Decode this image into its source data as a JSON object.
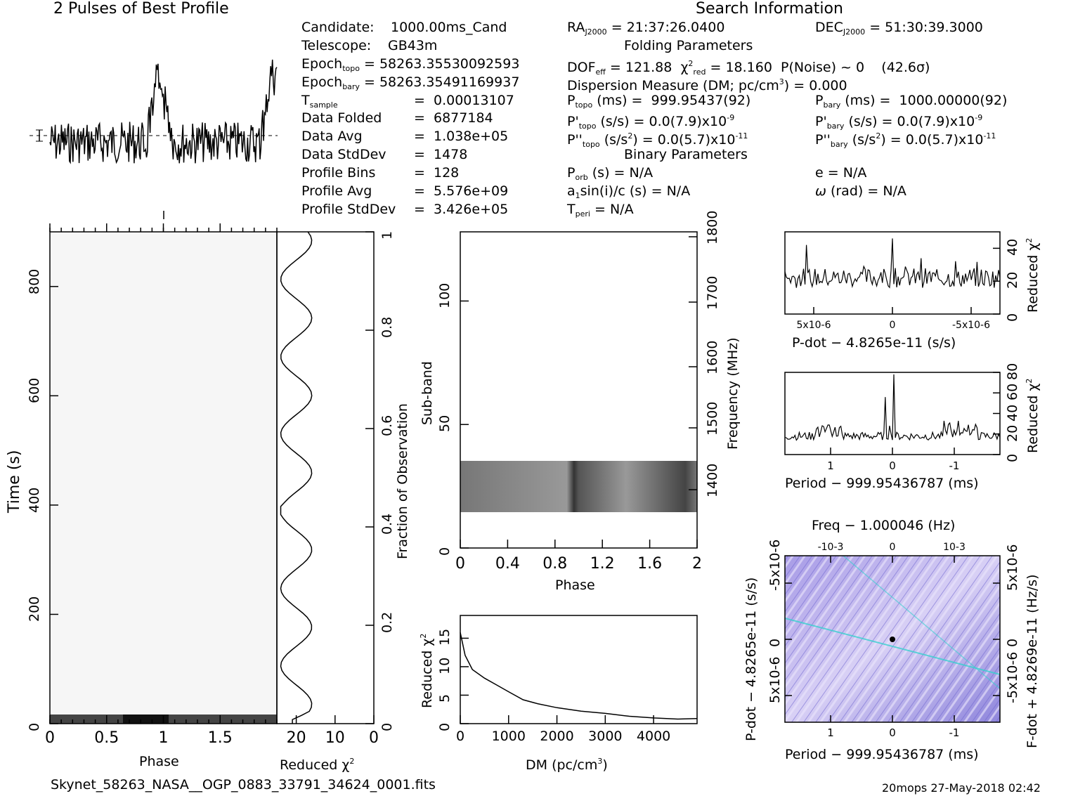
{
  "title_profile": "2 Pulses of Best Profile",
  "title_search": "Search Information",
  "info": {
    "candidate_label": "Candidate:",
    "candidate_value": "1000.00ms_Cand",
    "telescope_label": "Telescope:",
    "telescope_value": "GB43m",
    "epoch_topo": "58263.35530092593",
    "epoch_bary": "58263.35491169937",
    "t_sample": "0.00013107",
    "data_folded_label": "Data Folded",
    "data_folded": "6877184",
    "data_avg_label": "Data Avg",
    "data_avg": "1.038e+05",
    "data_stddev_label": "Data StdDev",
    "data_stddev": "1478",
    "profile_bins_label": "Profile Bins",
    "profile_bins": "128",
    "profile_avg_label": "Profile Avg",
    "profile_avg": "5.576e+09",
    "profile_stddev_label": "Profile StdDev",
    "profile_stddev": "3.426e+05",
    "ra": "21:37:26.0400",
    "dec": "51:30:39.3000",
    "folding_title": "Folding Parameters",
    "dof_eff": "121.88",
    "chi2_red": "18.160",
    "p_noise": "P(Noise) ~ 0",
    "sigma": "(42.6σ)",
    "dm_line": "Dispersion Measure (DM; pc/cm",
    "dm_value": ") = 0.000",
    "p_topo": "999.95437(92)",
    "p_bary": "1000.00000(92)",
    "pd_topo": "0.0(7.9)x10",
    "pd_topo_exp": "-9",
    "pd_bary": "0.0(7.9)x10",
    "pd_bary_exp": "-9",
    "pdd_topo": "0.0(5.7)x10",
    "pdd_topo_exp": "-11",
    "pdd_bary": "0.0(5.7)x10",
    "pdd_bary_exp": "-11",
    "binary_title": "Binary Parameters",
    "p_orb": "N/A",
    "a1": "N/A",
    "t_peri": "N/A",
    "ecc": "N/A",
    "omega": "N/A"
  },
  "labels": {
    "time_axis": "Time (s)",
    "phase": "Phase",
    "reduced_chi2": "Reduced χ",
    "fraction_obs": "Fraction of Observation",
    "subband": "Sub-band",
    "frequency": "Frequency (MHz)",
    "dm_axis": "DM (pc/cm",
    "pdot_axis": "P-dot − 4.8265e-11 (s/s)",
    "period_axis": "Period − 999.95436787 (ms)",
    "freq_axis": "Freq − 1.000046 (Hz)",
    "fdot_axis": "F-dot + 4.8269e-11 (Hz/s)",
    "pdot_left_axis": "P-dot − 4.8265e-11 (s/s)",
    "filename": "Skynet_58263_NASA__OGP_0883_33791_34624_0001.fits",
    "stamp": "20mops 27-May-2018 02:42"
  },
  "chart_data": [
    {
      "type": "line",
      "title": "2 Pulses of Best Profile",
      "xlabel": "",
      "ylabel": "",
      "xlim": [
        0,
        2
      ],
      "note_peaks": [
        0.97,
        1.97
      ]
    },
    {
      "type": "heatmap",
      "xlabel": "Phase",
      "ylabel": "Time (s)",
      "xlim": [
        0,
        2
      ],
      "ylim": [
        0,
        900
      ],
      "x_ticks": [
        "0",
        "0.5",
        "1",
        "1.5"
      ],
      "y_ticks": [
        "0",
        "200",
        "400",
        "600",
        "800"
      ]
    },
    {
      "type": "line",
      "xlabel": "Reduced χ2",
      "ylabel": "Fraction of Observation",
      "xlim": [
        25,
        0
      ],
      "ylim": [
        0,
        1
      ],
      "x_ticks": [
        "20",
        "10",
        "0"
      ],
      "y_ticks": [
        "0",
        "0.2",
        "0.4",
        "0.6",
        "0.8",
        "1"
      ]
    },
    {
      "type": "heatmap",
      "xlabel": "Phase",
      "ylabel": "Sub-band",
      "y2label": "Frequency (MHz)",
      "xlim": [
        0,
        2
      ],
      "ylim": [
        0,
        128
      ],
      "x_ticks": [
        "0",
        "0.4",
        "0.8",
        "1.2",
        "1.6",
        "2"
      ],
      "y_ticks": [
        "0",
        "50",
        "100"
      ],
      "y2_ticks": [
        "1400",
        "1500",
        "1600",
        "1700",
        "1800"
      ],
      "signal_subbands": [
        14,
        35
      ]
    },
    {
      "type": "line",
      "xlabel": "DM (pc/cm3)",
      "ylabel": "Reduced χ2",
      "xlim": [
        0,
        4900
      ],
      "ylim": [
        0,
        19
      ],
      "x_ticks": [
        "0",
        "1000",
        "2000",
        "3000",
        "4000"
      ],
      "y_ticks": [
        "0",
        "5",
        "10",
        "15"
      ],
      "x": [
        0,
        100,
        250,
        500,
        750,
        1000,
        1300,
        1600,
        2000,
        2500,
        3000,
        3500,
        4000,
        4500,
        4900
      ],
      "y": [
        16,
        12,
        9.5,
        8,
        6.8,
        5.6,
        4.2,
        3.5,
        2.8,
        2.2,
        1.8,
        1.3,
        1.0,
        0.8,
        0.9
      ]
    },
    {
      "type": "line",
      "xlabel": "P-dot − 4.8265e-11 (s/s)",
      "ylabel": "Reduced χ2",
      "x_ticks": [
        "5x10-6",
        "0",
        "-5x10-6"
      ],
      "y_ticks": [
        "0",
        "20",
        "40"
      ],
      "ylim": [
        0,
        50
      ]
    },
    {
      "type": "line",
      "xlabel": "Period − 999.95436787 (ms)",
      "ylabel": "Reduced χ2",
      "x_ticks": [
        "1",
        "0",
        "-1"
      ],
      "y_ticks": [
        "0",
        "20",
        "40",
        "60",
        "80"
      ],
      "ylim": [
        0,
        80
      ]
    },
    {
      "type": "heatmap",
      "xlabel": "Period − 999.95436787 (ms)",
      "ylabel": "P-dot − 4.8265e-11 (s/s)",
      "x_ticks": [
        "1",
        "0",
        "-1"
      ],
      "top_ticks": [
        "-10-3",
        "0",
        "10-3"
      ],
      "y_ticks": [
        "-5x10-6",
        "0",
        "5x10-6"
      ],
      "y2_ticks": [
        "5x10-6",
        "0",
        "-5x10-6"
      ]
    }
  ],
  "colors": {
    "ink": "#000000",
    "ppdot_base": "#c8c0ee",
    "ppdot_dark": "#5a55c8",
    "ppdot_cyan": "#3ad0d0"
  }
}
